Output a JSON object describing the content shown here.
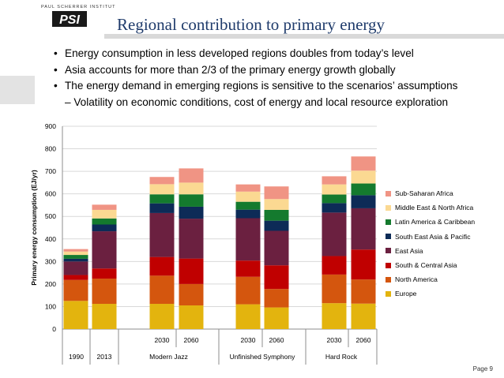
{
  "logo": {
    "institute": "PAUL SCHERRER INSTITUT",
    "mark": "PSI"
  },
  "title": "Regional contribution to primary energy",
  "bullets": [
    "Energy consumption in less developed regions doubles from today’s level",
    "Asia accounts for more than 2/3 of the primary energy growth globally",
    "The energy demand in emerging regions is sensitive to the scenarios’ assumptions"
  ],
  "sub_bullet": "– Volatility on economic conditions, cost of energy and local resource exploration",
  "page_label": "Page 9",
  "colors": {
    "Europe": "#e3b40e",
    "North America": "#d4560e",
    "South & Central Asia": "#c00000",
    "East Asia": "#6b2040",
    "South East Asia & Pacific": "#0d2b57",
    "Latin America & Caribbean": "#147a2e",
    "Middle East & North Africa": "#fbd992",
    "Sub-Saharan Africa": "#f09484"
  },
  "chart_data": {
    "type": "bar",
    "stacked": true,
    "ylabel": "Primary energy consumption (EJ/yr)",
    "ylim": [
      0,
      900
    ],
    "yticks": [
      0,
      100,
      200,
      300,
      400,
      500,
      600,
      700,
      800,
      900
    ],
    "grid": true,
    "legend_placement": "right",
    "categories": [
      "1990",
      "2013",
      "2030",
      "2060",
      "2030",
      "2060",
      "2030",
      "2060"
    ],
    "groups": [
      {
        "label": "1990",
        "bars": [
          0
        ]
      },
      {
        "label": "2013",
        "bars": [
          1
        ]
      },
      {
        "label": "Modern Jazz",
        "bars": [
          2,
          3
        ]
      },
      {
        "label": "Unfinished Symphony",
        "bars": [
          4,
          5
        ]
      },
      {
        "label": "Hard Rock",
        "bars": [
          6,
          7
        ]
      }
    ],
    "series": [
      {
        "name": "Europe",
        "values": [
          125,
          112,
          112,
          105,
          110,
          96,
          115,
          113
        ]
      },
      {
        "name": "North America",
        "values": [
          93,
          112,
          125,
          95,
          122,
          82,
          127,
          107
        ]
      },
      {
        "name": "South & Central Asia",
        "values": [
          22,
          45,
          83,
          113,
          72,
          105,
          82,
          133
        ]
      },
      {
        "name": "East Asia",
        "values": [
          60,
          165,
          195,
          177,
          188,
          153,
          193,
          183
        ]
      },
      {
        "name": "South East Asia & Pacific",
        "values": [
          12,
          30,
          43,
          53,
          38,
          45,
          42,
          58
        ]
      },
      {
        "name": "Latin America & Caribbean",
        "values": [
          17,
          27,
          40,
          55,
          35,
          48,
          38,
          52
        ]
      },
      {
        "name": "Middle East & North Africa",
        "values": [
          15,
          38,
          45,
          52,
          45,
          48,
          45,
          57
        ]
      },
      {
        "name": "Sub-Saharan Africa",
        "values": [
          11,
          23,
          32,
          63,
          32,
          56,
          36,
          63
        ]
      }
    ]
  }
}
